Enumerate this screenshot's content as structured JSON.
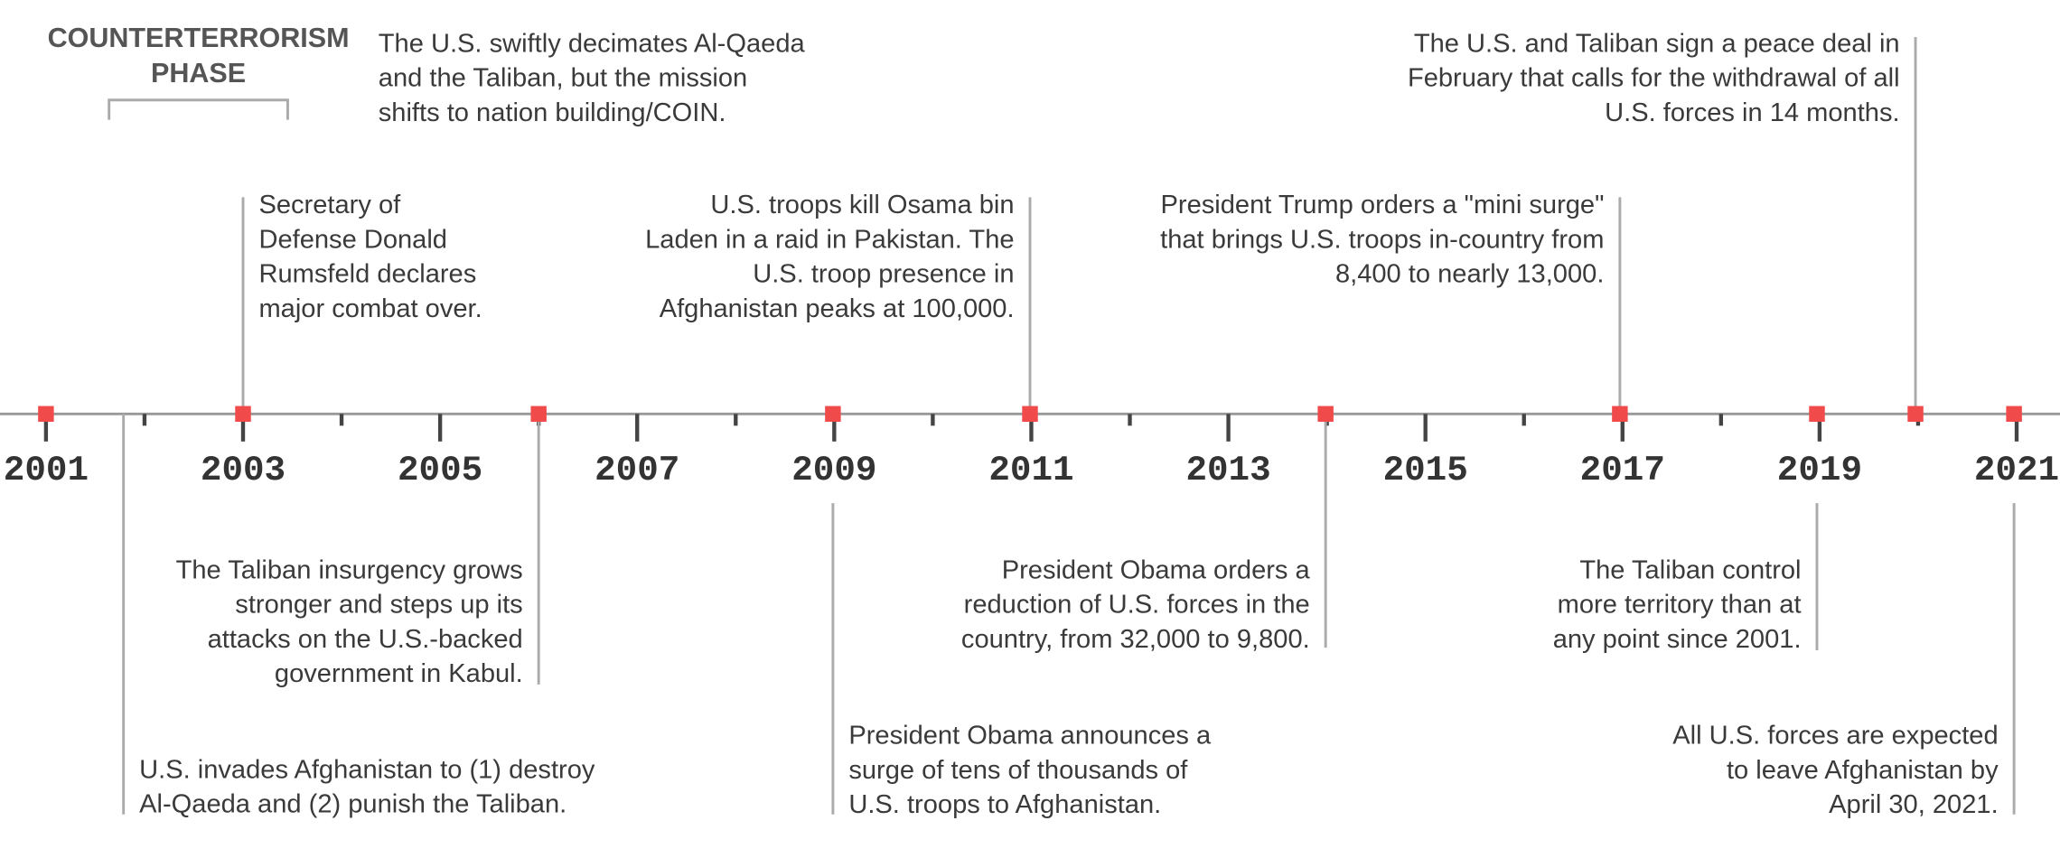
{
  "phase": {
    "lines": [
      "COUNTERTERRORISM",
      "PHASE"
    ]
  },
  "top_note": {
    "lines": [
      "The U.S. swiftly decimates Al-Qaeda",
      "and the Taliban, but the mission",
      "shifts to nation building/COIN."
    ]
  },
  "axis_labels": [
    "2001",
    "2003",
    "2005",
    "2007",
    "2009",
    "2011",
    "2013",
    "2015",
    "2017",
    "2019",
    "2021"
  ],
  "events": [
    {
      "lines": [
        "Secretary of",
        "Defense Donald",
        "Rumsfeld declares",
        "major combat over."
      ]
    },
    {
      "lines": [
        "U.S. troops kill Osama bin",
        "Laden in a raid in Pakistan. The",
        "U.S. troop presence  in",
        "Afghanistan peaks at 100,000."
      ]
    },
    {
      "lines": [
        "President Trump orders a \"mini surge\"",
        "that brings U.S. troops in-country from",
        "8,400 to nearly 13,000."
      ]
    },
    {
      "lines": [
        "The U.S. and Taliban sign a peace deal in",
        "February that calls for the withdrawal of all",
        "U.S. forces in 14 months."
      ]
    },
    {
      "lines": [
        "The Taliban insurgency grows",
        "stronger and steps up its",
        "attacks on the U.S.-backed",
        "government in Kabul."
      ]
    },
    {
      "lines": [
        "President Obama announces a",
        "surge of tens of thousands of",
        "U.S. troops to Afghanistan."
      ]
    },
    {
      "lines": [
        "U.S. invades Afghanistan to (1) destroy",
        "Al-Qaeda and (2) punish the Taliban."
      ]
    },
    {
      "lines": [
        "President Obama orders a",
        "reduction of U.S. forces in the",
        "country, from 32,000 to 9,800."
      ]
    },
    {
      "lines": [
        "The Taliban control",
        "more territory than at",
        "any point since 2001."
      ]
    },
    {
      "lines": [
        "All U.S. forces are expected",
        "to leave Afghanistan by",
        "April 30, 2021."
      ]
    }
  ]
}
